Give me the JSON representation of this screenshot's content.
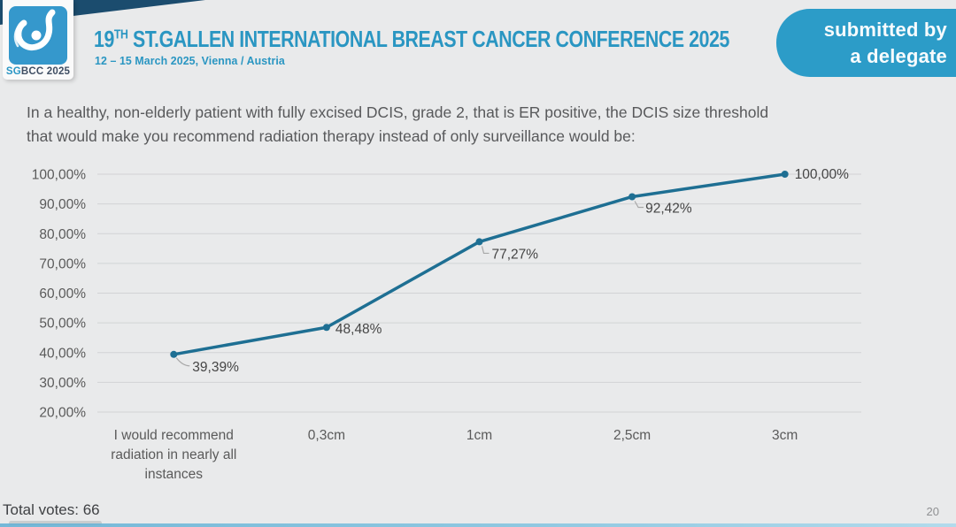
{
  "logo": {
    "sg": "SG",
    "rest": "BCC 2025"
  },
  "header": {
    "title_num": "19",
    "title_sup": "TH",
    "title_rest": " ST.GALLEN INTERNATIONAL BREAST CANCER CONFERENCE 2025",
    "subtitle": "12 – 15 March 2025, Vienna / Austria"
  },
  "badge": {
    "line1": "submitted by",
    "line2": "a delegate"
  },
  "question": {
    "text": "In a healthy, non-elderly patient with fully excised DCIS, grade 2, that is ER positive, the DCIS size threshold that would make you recommend radiation therapy instead of only surveillance would be:"
  },
  "chart_data": {
    "type": "line",
    "categories": [
      "I would recommend\nradiation in nearly all\ninstances",
      "0,3cm",
      "1cm",
      "2,5cm",
      "3cm"
    ],
    "values": [
      39.39,
      48.48,
      77.27,
      92.42,
      100.0
    ],
    "value_labels": [
      "39,39%",
      "48,48%",
      "77,27%",
      "92,42%",
      "100,00%"
    ],
    "y_ticks": [
      "100,00%",
      "90,00%",
      "80,00%",
      "70,00%",
      "60,00%",
      "50,00%",
      "40,00%",
      "30,00%",
      "20,00%"
    ],
    "ylim": [
      20,
      100
    ],
    "grid": true,
    "legend": "none",
    "title": "",
    "xlabel": "",
    "ylabel": "",
    "line_color": "#1E6F93"
  },
  "footer": {
    "total_votes": "Total votes: 66",
    "page": "20"
  },
  "colors": {
    "background": "#E9EAEB",
    "navy_wedge": "#1B4C6E",
    "header_teal": "#2A96C2",
    "badge_blue": "#2C9CC8",
    "logo_blue": "#3598CC",
    "line_teal": "#1E6F93",
    "gridline": "#D2D3D5"
  }
}
